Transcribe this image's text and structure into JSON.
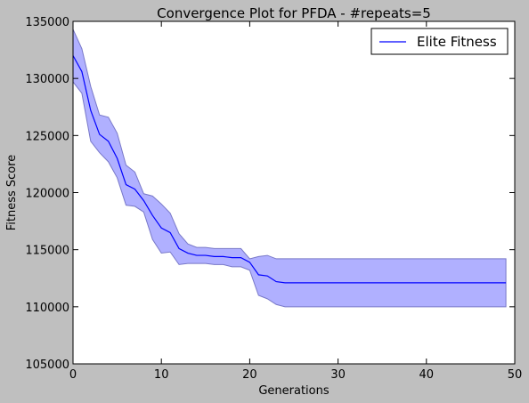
{
  "chart_data": {
    "type": "line",
    "title": "Convergence Plot for PFDA - #repeats=5",
    "xlabel": "Generations",
    "ylabel": "Fitness Score",
    "xlim": [
      0,
      50
    ],
    "ylim": [
      105000,
      135000
    ],
    "xticks": [
      0,
      10,
      20,
      30,
      40,
      50
    ],
    "yticks": [
      105000,
      110000,
      115000,
      120000,
      125000,
      130000,
      135000
    ],
    "grid": false,
    "legend_position": "top-right",
    "colors": {
      "line": "#0000ff",
      "band_fill": "#b0b0ff",
      "band_edge": "#7878c8"
    },
    "series": [
      {
        "name": "Elite Fitness",
        "x": [
          0,
          1,
          2,
          3,
          4,
          5,
          6,
          7,
          8,
          9,
          10,
          11,
          12,
          13,
          14,
          15,
          16,
          17,
          18,
          19,
          20,
          21,
          22,
          23,
          24,
          25,
          26,
          27,
          28,
          29,
          30,
          31,
          32,
          33,
          34,
          35,
          36,
          37,
          38,
          39,
          40,
          41,
          42,
          43,
          44,
          45,
          46,
          47,
          48,
          49
        ],
        "y": [
          132000,
          130600,
          127200,
          125100,
          124500,
          123000,
          120700,
          120300,
          119300,
          118000,
          116900,
          116500,
          115100,
          114700,
          114500,
          114500,
          114400,
          114400,
          114300,
          114300,
          113900,
          112800,
          112700,
          112200,
          112100,
          112100,
          112100,
          112100,
          112100,
          112100,
          112100,
          112100,
          112100,
          112100,
          112100,
          112100,
          112100,
          112100,
          112100,
          112100,
          112100,
          112100,
          112100,
          112100,
          112100,
          112100,
          112100,
          112100,
          112100,
          112100
        ],
        "y_upper": [
          134300,
          132600,
          129300,
          126800,
          126600,
          125200,
          122400,
          121800,
          119900,
          119700,
          119000,
          118200,
          116400,
          115500,
          115200,
          115200,
          115100,
          115100,
          115100,
          115100,
          114200,
          114400,
          114500,
          114200,
          114200,
          114200,
          114200,
          114200,
          114200,
          114200,
          114200,
          114200,
          114200,
          114200,
          114200,
          114200,
          114200,
          114200,
          114200,
          114200,
          114200,
          114200,
          114200,
          114200,
          114200,
          114200,
          114200,
          114200,
          114200,
          114200
        ],
        "y_lower": [
          129700,
          128700,
          124500,
          123500,
          122700,
          121300,
          118900,
          118800,
          118300,
          115900,
          114700,
          114800,
          113700,
          113800,
          113800,
          113800,
          113700,
          113700,
          113500,
          113500,
          113200,
          111000,
          110700,
          110200,
          110000,
          110000,
          110000,
          110000,
          110000,
          110000,
          110000,
          110000,
          110000,
          110000,
          110000,
          110000,
          110000,
          110000,
          110000,
          110000,
          110000,
          110000,
          110000,
          110000,
          110000,
          110000,
          110000,
          110000,
          110000,
          110000
        ]
      }
    ]
  }
}
